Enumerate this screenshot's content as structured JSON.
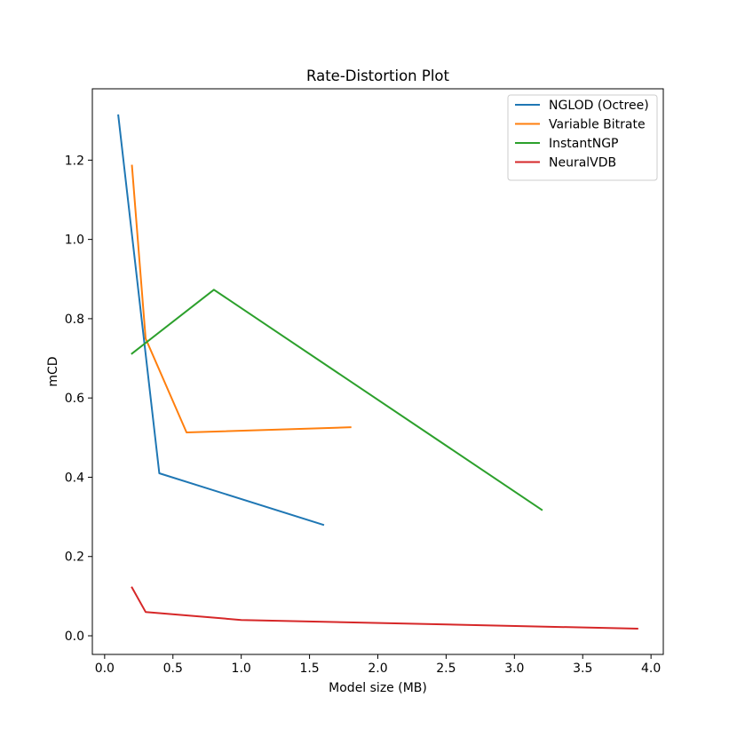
{
  "chart_data": {
    "type": "line",
    "title": "Rate-Distortion Plot",
    "xlabel": "Model size (MB)",
    "ylabel": "mCD",
    "xlim": [
      -0.09,
      4.09
    ],
    "ylim": [
      -0.047,
      1.38
    ],
    "xticks": [
      0.0,
      0.5,
      1.0,
      1.5,
      2.0,
      2.5,
      3.0,
      3.5,
      4.0
    ],
    "xtick_labels": [
      "0.0",
      "0.5",
      "1.0",
      "1.5",
      "2.0",
      "2.5",
      "3.0",
      "3.5",
      "4.0"
    ],
    "yticks": [
      0.0,
      0.2,
      0.4,
      0.6,
      0.8,
      1.0,
      1.2
    ],
    "ytick_labels": [
      "0.0",
      "0.2",
      "0.4",
      "0.6",
      "0.8",
      "1.0",
      "1.2"
    ],
    "grid": false,
    "legend": "top-right",
    "series": [
      {
        "name": "NGLOD (Octree)",
        "color": "#1f77b4",
        "x": [
          0.1,
          0.4,
          1.6
        ],
        "y": [
          1.313,
          0.41,
          0.28
        ]
      },
      {
        "name": "Variable Bitrate",
        "color": "#ff7f0e",
        "x": [
          0.2,
          0.3,
          0.6,
          1.8
        ],
        "y": [
          1.186,
          0.75,
          0.513,
          0.526
        ]
      },
      {
        "name": "InstantNGP",
        "color": "#2ca02c",
        "x": [
          0.2,
          0.8,
          3.2
        ],
        "y": [
          0.712,
          0.873,
          0.318
        ]
      },
      {
        "name": "NeuralVDB",
        "color": "#d62728",
        "x": [
          0.2,
          0.3,
          1.0,
          3.9
        ],
        "y": [
          0.122,
          0.06,
          0.04,
          0.018
        ]
      }
    ]
  }
}
